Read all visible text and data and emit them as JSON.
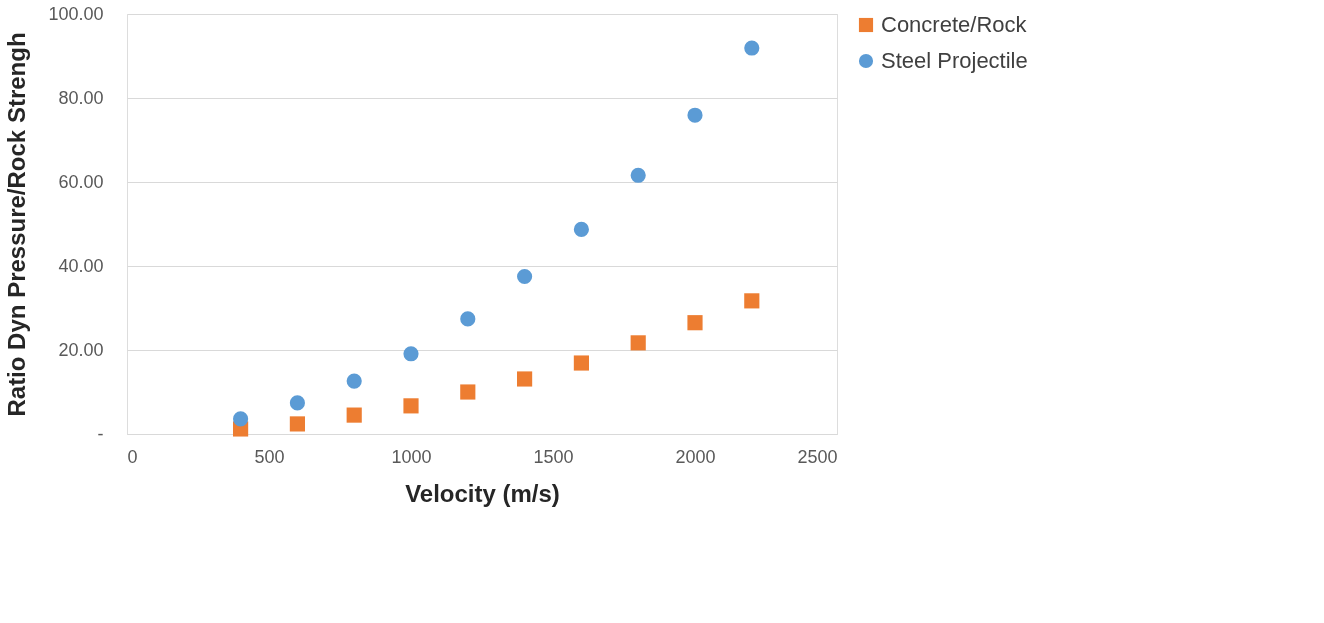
{
  "chart_data": {
    "type": "scatter",
    "xlabel": "Velocity (m/s)",
    "ylabel": "Ratio Dyn Pressure/Rock Strengh",
    "x": [
      400,
      600,
      800,
      1000,
      1200,
      1400,
      1600,
      1800,
      2000,
      2200
    ],
    "series": [
      {
        "name": "Concrete/Rock",
        "color": "#ed7d31",
        "marker": "square",
        "values": [
          1.2,
          2.4,
          4.5,
          6.7,
          10.0,
          13.1,
          16.9,
          21.7,
          26.5,
          31.7
        ]
      },
      {
        "name": "Steel Projectile",
        "color": "#5b9bd5",
        "marker": "circle",
        "values": [
          3.6,
          7.4,
          12.6,
          19.1,
          27.4,
          37.5,
          48.7,
          61.6,
          75.9,
          91.9
        ]
      }
    ],
    "xlim": [
      0,
      2500
    ],
    "xticks": [
      0,
      500,
      1000,
      1500,
      2000,
      2500
    ],
    "ylim": [
      0,
      100
    ],
    "yticks": [
      {
        "value": 0,
        "label": "-"
      },
      {
        "value": 20,
        "label": "20.00"
      },
      {
        "value": 40,
        "label": "40.00"
      },
      {
        "value": 60,
        "label": "60.00"
      },
      {
        "value": 80,
        "label": "80.00"
      },
      {
        "value": 100,
        "label": "100.00"
      }
    ],
    "grid": "y",
    "legend": "right"
  }
}
